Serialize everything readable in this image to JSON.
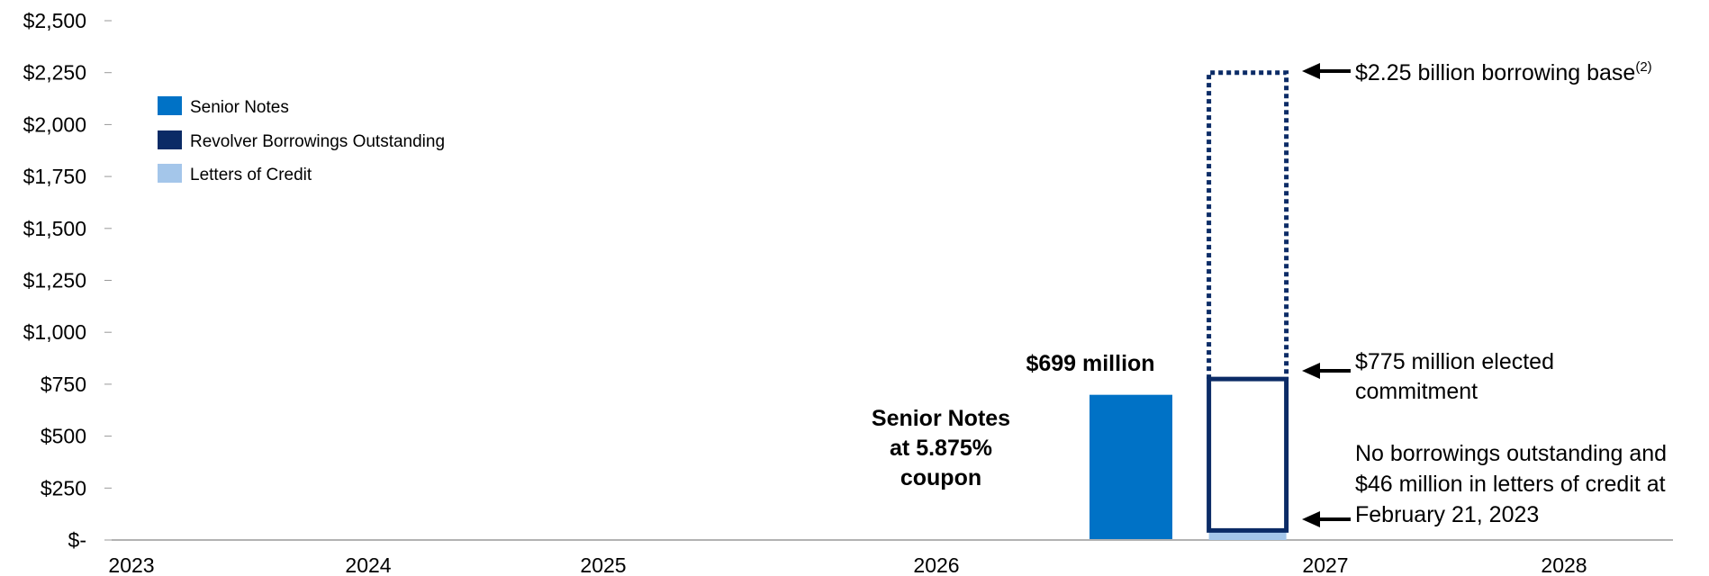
{
  "colors": {
    "senior_notes": "#0072c6",
    "revolver": "#0b2b66",
    "letters_of_credit": "#a4c6ea",
    "axis": "#999999"
  },
  "chart_data": {
    "type": "bar",
    "ylim": [
      0,
      2500
    ],
    "y_tick_labels": [
      "$-",
      "$250",
      "$500",
      "$750",
      "$1,000",
      "$1,250",
      "$1,500",
      "$1,750",
      "$2,000",
      "$2,250",
      "$2,500"
    ],
    "x_tick_labels": [
      "2023",
      "2024",
      "2025",
      "2026",
      "2027",
      "2028"
    ],
    "legend": [
      "Senior Notes",
      "Revolver Borrowings Outstanding",
      "Letters of Credit"
    ],
    "legend_position": "top-left",
    "bars": [
      {
        "series": "Senior Notes",
        "x": 2026.5,
        "value": 699
      },
      {
        "series": "Letters of Credit",
        "x": 2026.8,
        "value": 46
      },
      {
        "series": "Revolver Borrowings Outstanding",
        "x": 2026.8,
        "value": 0
      }
    ],
    "revolver": {
      "borrowing_base": 2250,
      "elected_commitment": 775,
      "letters_of_credit": 46
    },
    "annotations": {
      "senior_value": "$699 million",
      "senior_desc": [
        "Senior Notes",
        "at 5.875%",
        "coupon"
      ],
      "borrowing_base": "$2.25 billion borrowing base",
      "borrowing_base_sup": "(2)",
      "commitment": [
        "$775 million elected",
        "commitment"
      ],
      "outstanding": [
        "No borrowings outstanding and",
        "$46 million in letters of credit at",
        "February 21, 2023"
      ]
    }
  }
}
